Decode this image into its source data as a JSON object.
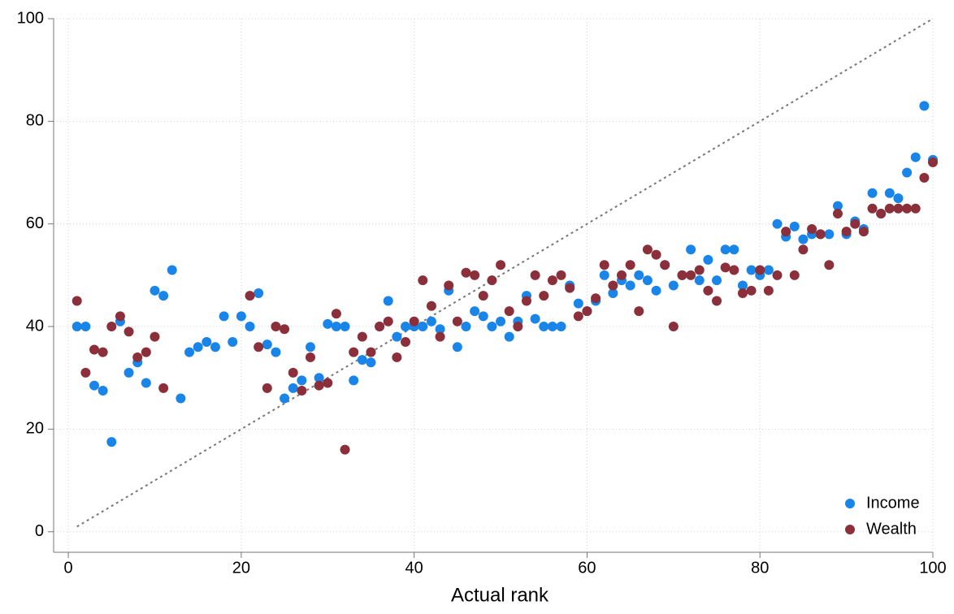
{
  "chart_data": {
    "type": "scatter",
    "x_label": "Actual rank",
    "x": [
      1,
      2,
      3,
      4,
      5,
      6,
      7,
      8,
      9,
      10,
      11,
      12,
      13,
      14,
      15,
      16,
      17,
      18,
      19,
      20,
      21,
      22,
      23,
      24,
      25,
      26,
      27,
      28,
      29,
      30,
      31,
      32,
      33,
      34,
      35,
      36,
      37,
      38,
      39,
      40,
      41,
      42,
      43,
      44,
      45,
      46,
      47,
      48,
      49,
      50,
      51,
      52,
      53,
      54,
      55,
      56,
      57,
      58,
      59,
      60,
      61,
      62,
      63,
      64,
      65,
      66,
      67,
      68,
      69,
      70,
      71,
      72,
      73,
      74,
      75,
      76,
      77,
      78,
      79,
      80,
      81,
      82,
      83,
      84,
      85,
      86,
      87,
      88,
      89,
      90,
      91,
      92,
      93,
      94,
      95,
      96,
      97,
      98,
      99,
      100
    ],
    "series": [
      {
        "name": "Income",
        "color": "#1a85e8",
        "values": [
          40,
          40,
          28.5,
          27.5,
          17.5,
          41,
          31,
          33,
          29,
          47,
          46,
          51,
          26,
          35,
          36,
          37,
          36,
          42,
          37,
          42,
          40,
          46.5,
          36.5,
          35,
          26,
          28,
          29.5,
          36,
          30,
          40.5,
          40,
          40,
          29.5,
          33.5,
          33,
          40,
          45,
          38,
          40,
          40,
          40,
          41,
          39.5,
          47,
          36,
          40,
          43,
          42,
          40,
          41,
          38,
          41,
          46,
          41.5,
          40,
          40,
          40,
          48,
          44.5,
          43,
          45,
          50,
          46.5,
          49,
          48,
          50,
          49,
          47,
          52,
          48,
          50,
          55,
          49,
          53,
          49,
          55,
          55,
          48,
          51,
          50,
          51,
          60,
          57.5,
          59.5,
          57,
          58,
          58,
          58,
          63.5,
          58,
          60.5,
          59,
          66,
          62,
          66,
          65,
          70,
          73,
          83,
          72.5
        ]
      },
      {
        "name": "Wealth",
        "color": "#8b2f3a",
        "values": [
          45,
          31,
          35.5,
          35,
          40,
          42,
          39,
          34,
          35,
          38,
          28,
          null,
          null,
          null,
          null,
          null,
          null,
          null,
          null,
          null,
          46,
          36,
          28,
          40,
          39.5,
          31,
          27.5,
          34,
          28.5,
          29,
          42.5,
          16,
          35,
          38,
          35,
          40,
          41,
          34,
          37,
          41,
          49,
          44,
          38,
          48,
          41,
          50.5,
          50,
          46,
          49,
          52,
          43,
          40,
          45,
          50,
          46,
          49,
          50,
          47.5,
          42,
          43,
          45.5,
          52,
          48,
          50,
          52,
          43,
          55,
          54,
          52,
          40,
          50,
          50,
          51,
          47,
          45,
          51.5,
          51,
          46.5,
          47,
          51,
          47,
          50,
          58.5,
          50,
          55,
          59,
          58,
          52,
          62,
          58.5,
          60,
          58.5,
          63,
          62,
          63,
          63,
          63,
          63,
          69,
          72
        ]
      }
    ],
    "xlim": [
      -1.7,
      100
    ],
    "ylim": [
      -4,
      100
    ],
    "xticks": [
      0,
      20,
      40,
      60,
      80,
      100
    ],
    "yticks": [
      0,
      20,
      40,
      60,
      80,
      100
    ],
    "grid": true,
    "legend": "bottom-right"
  }
}
